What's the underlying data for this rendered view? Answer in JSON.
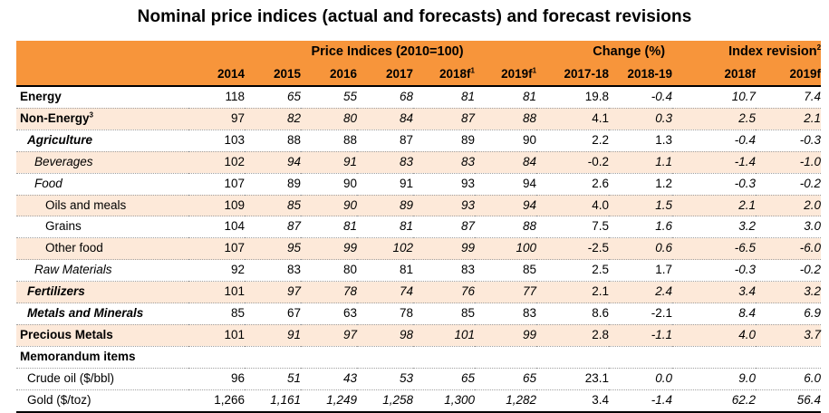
{
  "title": "Nominal price indices (actual and forecasts) and forecast revisions",
  "header": {
    "group_price": "Price Indices (2010=100)",
    "group_change": "Change (%)",
    "group_revision": "Index revision",
    "group_revision_note": "2",
    "columns": {
      "c2014": "2014",
      "c2015": "2015",
      "c2016": "2016",
      "c2017": "2017",
      "c2018f": "2018f",
      "c2018f_note": "1",
      "c2019f": "2019f",
      "c2019f_note": "1",
      "ch1718": "2017-18",
      "ch1819": "2018-19",
      "rev2018f": "2018f",
      "rev2019f": "2019f"
    }
  },
  "rows": [
    {
      "label": "Energy",
      "v": [
        "118",
        "65",
        "55",
        "68",
        "81",
        "81",
        "19.8",
        "-0.4",
        "10.7",
        "7.4"
      ]
    },
    {
      "label": "Non-Energy",
      "note": "3",
      "v": [
        "97",
        "82",
        "80",
        "84",
        "87",
        "88",
        "4.1",
        "0.3",
        "2.5",
        "2.1"
      ]
    },
    {
      "label": "Agriculture",
      "v": [
        "103",
        "88",
        "88",
        "87",
        "89",
        "90",
        "2.2",
        "1.3",
        "-0.4",
        "-0.3"
      ]
    },
    {
      "label": "Beverages",
      "v": [
        "102",
        "94",
        "91",
        "83",
        "83",
        "84",
        "-0.2",
        "1.1",
        "-1.4",
        "-1.0"
      ]
    },
    {
      "label": "Food",
      "v": [
        "107",
        "89",
        "90",
        "91",
        "93",
        "94",
        "2.6",
        "1.2",
        "-0.3",
        "-0.2"
      ]
    },
    {
      "label": "Oils and meals",
      "v": [
        "109",
        "85",
        "90",
        "89",
        "93",
        "94",
        "4.0",
        "1.5",
        "2.1",
        "2.0"
      ]
    },
    {
      "label": "Grains",
      "v": [
        "104",
        "87",
        "81",
        "81",
        "87",
        "88",
        "7.5",
        "1.6",
        "3.2",
        "3.0"
      ]
    },
    {
      "label": "Other food",
      "v": [
        "107",
        "95",
        "99",
        "102",
        "99",
        "100",
        "-2.5",
        "0.6",
        "-6.5",
        "-6.0"
      ]
    },
    {
      "label": "Raw Materials",
      "v": [
        "92",
        "83",
        "80",
        "81",
        "83",
        "85",
        "2.5",
        "1.7",
        "-0.3",
        "-0.2"
      ]
    },
    {
      "label": "Fertilizers",
      "v": [
        "101",
        "97",
        "78",
        "74",
        "76",
        "77",
        "2.1",
        "2.4",
        "3.4",
        "3.2"
      ]
    },
    {
      "label": "Metals and Minerals",
      "v": [
        "85",
        "67",
        "63",
        "78",
        "85",
        "83",
        "8.6",
        "-2.1",
        "8.4",
        "6.9"
      ]
    },
    {
      "label": "Precious Metals",
      "v": [
        "101",
        "91",
        "97",
        "98",
        "101",
        "99",
        "2.8",
        "-1.1",
        "4.0",
        "3.7"
      ]
    },
    {
      "label": "Memorandum items"
    },
    {
      "label": "Crude oil ($/bbl)",
      "v": [
        "96",
        "51",
        "43",
        "53",
        "65",
        "65",
        "23.1",
        "0.0",
        "9.0",
        "6.0"
      ]
    },
    {
      "label": "Gold ($/toz)",
      "v": [
        "1,266",
        "1,161",
        "1,249",
        "1,258",
        "1,300",
        "1,282",
        "3.4",
        "-1.4",
        "62.2",
        "56.4"
      ]
    }
  ]
}
